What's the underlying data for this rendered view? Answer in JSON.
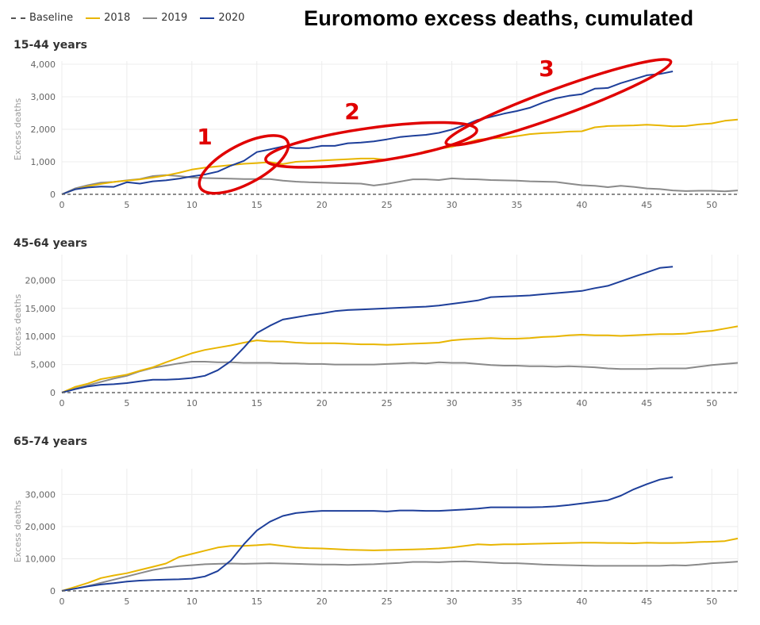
{
  "title": "Euromomo excess deaths, cumulated",
  "legend": [
    {
      "label": "Baseline",
      "color": "#555555",
      "dashed": true
    },
    {
      "label": "2018",
      "color": "#e8b500",
      "dashed": false
    },
    {
      "label": "2019",
      "color": "#8a8a8a",
      "dashed": false
    },
    {
      "label": "2020",
      "color": "#1e3f9a",
      "dashed": false
    }
  ],
  "annotation_color": "#e00000",
  "chart_data": [
    {
      "type": "line",
      "title": "15-44 years",
      "xlabel": "",
      "ylabel": "Excess deaths",
      "xlim": [
        0,
        52
      ],
      "ylim": [
        0,
        4000
      ],
      "xticks": [
        0,
        5,
        10,
        15,
        20,
        25,
        30,
        35,
        40,
        45,
        50
      ],
      "yticks": [
        0,
        1000,
        2000,
        3000,
        4000
      ],
      "ytick_labels": [
        "0",
        "1,000",
        "2,000",
        "3,000",
        "4,000"
      ],
      "series": [
        {
          "name": "Baseline",
          "x": [
            0,
            52
          ],
          "values": [
            0,
            0
          ]
        },
        {
          "name": "2018",
          "x": [
            0,
            1,
            2,
            3,
            4,
            5,
            6,
            7,
            8,
            9,
            10,
            11,
            12,
            13,
            14,
            15,
            16,
            17,
            18,
            19,
            20,
            21,
            22,
            23,
            24,
            25,
            26,
            27,
            28,
            29,
            30,
            31,
            32,
            33,
            34,
            35,
            36,
            37,
            38,
            39,
            40,
            41,
            42,
            43,
            44,
            45,
            46,
            47,
            48,
            49,
            50,
            51,
            52
          ],
          "values": [
            0,
            150,
            250,
            320,
            380,
            420,
            460,
            520,
            580,
            660,
            760,
            820,
            860,
            900,
            940,
            960,
            990,
            930,
            1000,
            1020,
            1040,
            1060,
            1080,
            1100,
            1100,
            1060,
            1150,
            1200,
            1330,
            1400,
            1460,
            1570,
            1680,
            1720,
            1740,
            1790,
            1850,
            1880,
            1900,
            1930,
            1940,
            2060,
            2100,
            2110,
            2120,
            2140,
            2120,
            2090,
            2100,
            2150,
            2180,
            2260,
            2300
          ]
        },
        {
          "name": "2019",
          "x": [
            0,
            1,
            2,
            3,
            4,
            5,
            6,
            7,
            8,
            9,
            10,
            11,
            12,
            13,
            14,
            15,
            16,
            17,
            18,
            19,
            20,
            21,
            22,
            23,
            24,
            25,
            26,
            27,
            28,
            29,
            30,
            31,
            32,
            33,
            34,
            35,
            36,
            37,
            38,
            39,
            40,
            41,
            42,
            43,
            44,
            45,
            46,
            47,
            48,
            49,
            50,
            51,
            52
          ],
          "values": [
            0,
            180,
            280,
            360,
            380,
            430,
            470,
            560,
            590,
            560,
            520,
            500,
            490,
            480,
            470,
            470,
            470,
            420,
            390,
            370,
            360,
            350,
            340,
            330,
            270,
            320,
            390,
            460,
            460,
            440,
            490,
            470,
            460,
            440,
            430,
            420,
            400,
            390,
            380,
            330,
            280,
            260,
            220,
            260,
            230,
            180,
            160,
            120,
            100,
            110,
            110,
            90,
            120
          ]
        },
        {
          "name": "2020",
          "x": [
            0,
            1,
            2,
            3,
            4,
            5,
            6,
            7,
            8,
            9,
            10,
            11,
            12,
            13,
            14,
            15,
            16,
            17,
            18,
            19,
            20,
            21,
            22,
            23,
            24,
            25,
            26,
            27,
            28,
            29,
            30,
            31,
            32,
            33,
            34,
            35,
            36,
            37,
            38,
            39,
            40,
            41,
            42,
            43,
            44,
            45,
            46,
            47
          ],
          "values": [
            0,
            150,
            210,
            240,
            230,
            370,
            330,
            400,
            430,
            480,
            550,
            610,
            700,
            880,
            1030,
            1300,
            1380,
            1470,
            1420,
            1420,
            1490,
            1490,
            1570,
            1590,
            1630,
            1690,
            1760,
            1800,
            1830,
            1890,
            1990,
            2130,
            2290,
            2380,
            2480,
            2560,
            2660,
            2820,
            2950,
            3030,
            3080,
            3250,
            3270,
            3420,
            3540,
            3660,
            3700,
            3780
          ]
        }
      ],
      "annotations": [
        {
          "label": "1",
          "cx": 14,
          "cy": 920,
          "rx": 3.8,
          "ry": 600,
          "rotate": -28
        },
        {
          "label": "2",
          "cx": 23.8,
          "cy": 1520,
          "rx": 8.2,
          "ry": 520,
          "rotate": -8
        },
        {
          "label": "3",
          "cx": 38.2,
          "cy": 2830,
          "rx": 9.2,
          "ry": 420,
          "rotate": -20
        }
      ]
    },
    {
      "type": "line",
      "title": "45-64 years",
      "xlabel": "",
      "ylabel": "Excess deaths",
      "xlim": [
        0,
        52
      ],
      "ylim": [
        0,
        24000
      ],
      "xticks": [
        0,
        5,
        10,
        15,
        20,
        25,
        30,
        35,
        40,
        45,
        50
      ],
      "yticks": [
        0,
        5000,
        10000,
        15000,
        20000
      ],
      "ytick_labels": [
        "0",
        "5,000",
        "10,000",
        "15,000",
        "20,000"
      ],
      "series": [
        {
          "name": "Baseline",
          "x": [
            0,
            52
          ],
          "values": [
            0,
            0
          ]
        },
        {
          "name": "2018",
          "x": [
            0,
            1,
            2,
            3,
            4,
            5,
            6,
            7,
            8,
            9,
            10,
            11,
            12,
            13,
            14,
            15,
            16,
            17,
            18,
            19,
            20,
            21,
            22,
            23,
            24,
            25,
            26,
            27,
            28,
            29,
            30,
            31,
            32,
            33,
            34,
            35,
            36,
            37,
            38,
            39,
            40,
            41,
            42,
            43,
            44,
            45,
            46,
            47,
            48,
            49,
            50,
            51,
            52
          ],
          "values": [
            0,
            1000,
            1600,
            2400,
            2800,
            3200,
            3900,
            4500,
            5400,
            6200,
            7000,
            7600,
            8000,
            8400,
            8900,
            9300,
            9100,
            9100,
            8900,
            8800,
            8800,
            8800,
            8700,
            8600,
            8600,
            8500,
            8600,
            8700,
            8800,
            8900,
            9300,
            9500,
            9600,
            9700,
            9600,
            9600,
            9700,
            9900,
            10000,
            10200,
            10300,
            10200,
            10200,
            10100,
            10200,
            10300,
            10400,
            10400,
            10500,
            10800,
            11000,
            11400,
            11800
          ]
        },
        {
          "name": "2019",
          "x": [
            0,
            1,
            2,
            3,
            4,
            5,
            6,
            7,
            8,
            9,
            10,
            11,
            12,
            13,
            14,
            15,
            16,
            17,
            18,
            19,
            20,
            21,
            22,
            23,
            24,
            25,
            26,
            27,
            28,
            29,
            30,
            31,
            32,
            33,
            34,
            35,
            36,
            37,
            38,
            39,
            40,
            41,
            42,
            43,
            44,
            45,
            46,
            47,
            48,
            49,
            50,
            51,
            52
          ],
          "values": [
            0,
            700,
            1300,
            1900,
            2500,
            3000,
            3800,
            4400,
            4800,
            5200,
            5500,
            5500,
            5400,
            5400,
            5300,
            5300,
            5300,
            5200,
            5200,
            5100,
            5100,
            5000,
            5000,
            5000,
            5000,
            5100,
            5200,
            5300,
            5200,
            5400,
            5300,
            5300,
            5100,
            4900,
            4800,
            4800,
            4700,
            4700,
            4600,
            4700,
            4600,
            4500,
            4300,
            4200,
            4200,
            4200,
            4300,
            4300,
            4300,
            4600,
            4900,
            5100,
            5300
          ]
        },
        {
          "name": "2020",
          "x": [
            0,
            1,
            2,
            3,
            4,
            5,
            6,
            7,
            8,
            9,
            10,
            11,
            12,
            13,
            14,
            15,
            16,
            17,
            18,
            19,
            20,
            21,
            22,
            23,
            24,
            25,
            26,
            27,
            28,
            29,
            30,
            31,
            32,
            33,
            34,
            35,
            36,
            37,
            38,
            39,
            40,
            41,
            42,
            43,
            44,
            45,
            46,
            47
          ],
          "values": [
            0,
            600,
            1100,
            1400,
            1500,
            1700,
            2000,
            2300,
            2300,
            2400,
            2600,
            3000,
            4000,
            5600,
            8000,
            10600,
            11900,
            13000,
            13400,
            13800,
            14100,
            14500,
            14700,
            14800,
            14900,
            15000,
            15100,
            15200,
            15300,
            15500,
            15800,
            16100,
            16400,
            17000,
            17100,
            17200,
            17300,
            17500,
            17700,
            17900,
            18100,
            18600,
            19000,
            19800,
            20600,
            21400,
            22200,
            22400
          ]
        }
      ],
      "annotations": []
    },
    {
      "type": "line",
      "title": "65-74 years",
      "xlabel": "",
      "ylabel": "Excess deaths",
      "xlim": [
        0,
        52
      ],
      "ylim": [
        0,
        37000
      ],
      "xticks": [
        0,
        5,
        10,
        15,
        20,
        25,
        30,
        35,
        40,
        45,
        50
      ],
      "yticks": [
        0,
        10000,
        20000,
        30000
      ],
      "ytick_labels": [
        "0",
        "10,000",
        "20,000",
        "30,000"
      ],
      "series": [
        {
          "name": "Baseline",
          "x": [
            0,
            52
          ],
          "values": [
            0,
            0
          ]
        },
        {
          "name": "2018",
          "x": [
            0,
            1,
            2,
            3,
            4,
            5,
            6,
            7,
            8,
            9,
            10,
            11,
            12,
            13,
            14,
            15,
            16,
            17,
            18,
            19,
            20,
            21,
            22,
            23,
            24,
            25,
            26,
            27,
            28,
            29,
            30,
            31,
            32,
            33,
            34,
            35,
            36,
            37,
            38,
            39,
            40,
            41,
            42,
            43,
            44,
            45,
            46,
            47,
            48,
            49,
            50,
            51,
            52
          ],
          "values": [
            0,
            1200,
            2500,
            4000,
            4800,
            5500,
            6500,
            7500,
            8500,
            10500,
            11500,
            12500,
            13500,
            14000,
            14000,
            14200,
            14500,
            14000,
            13500,
            13300,
            13200,
            13000,
            12800,
            12700,
            12600,
            12700,
            12800,
            12900,
            13000,
            13200,
            13500,
            14000,
            14500,
            14300,
            14500,
            14500,
            14600,
            14700,
            14800,
            14900,
            15000,
            15000,
            14900,
            14900,
            14800,
            15000,
            14900,
            14900,
            15000,
            15200,
            15300,
            15500,
            16300
          ]
        },
        {
          "name": "2019",
          "x": [
            0,
            1,
            2,
            3,
            4,
            5,
            6,
            7,
            8,
            9,
            10,
            11,
            12,
            13,
            14,
            15,
            16,
            17,
            18,
            19,
            20,
            21,
            22,
            23,
            24,
            25,
            26,
            27,
            28,
            29,
            30,
            31,
            32,
            33,
            34,
            35,
            36,
            37,
            38,
            39,
            40,
            41,
            42,
            43,
            44,
            45,
            46,
            47,
            48,
            49,
            50,
            51,
            52
          ],
          "values": [
            0,
            700,
            1500,
            2500,
            3500,
            4500,
            5500,
            6500,
            7200,
            7700,
            8000,
            8300,
            8400,
            8500,
            8400,
            8500,
            8600,
            8500,
            8400,
            8300,
            8200,
            8200,
            8100,
            8200,
            8300,
            8500,
            8700,
            9000,
            9000,
            8900,
            9100,
            9200,
            9000,
            8800,
            8600,
            8600,
            8400,
            8200,
            8100,
            8000,
            7900,
            7800,
            7800,
            7800,
            7800,
            7800,
            7800,
            8000,
            7900,
            8200,
            8600,
            8800,
            9100
          ]
        },
        {
          "name": "2020",
          "x": [
            0,
            1,
            2,
            3,
            4,
            5,
            6,
            7,
            8,
            9,
            10,
            11,
            12,
            13,
            14,
            15,
            16,
            17,
            18,
            19,
            20,
            21,
            22,
            23,
            24,
            25,
            26,
            27,
            28,
            29,
            30,
            31,
            32,
            33,
            34,
            35,
            36,
            37,
            38,
            39,
            40,
            41,
            42,
            43,
            44,
            45,
            46,
            47
          ],
          "values": [
            0,
            700,
            1400,
            2000,
            2400,
            2900,
            3200,
            3400,
            3500,
            3600,
            3800,
            4500,
            6200,
            9500,
            14500,
            18800,
            21500,
            23300,
            24200,
            24600,
            24900,
            24900,
            24900,
            24900,
            24900,
            24700,
            25000,
            25000,
            24900,
            24900,
            25100,
            25300,
            25600,
            26000,
            26000,
            26000,
            26000,
            26100,
            26300,
            26700,
            27200,
            27700,
            28200,
            29600,
            31600,
            33200,
            34600,
            35400
          ]
        }
      ],
      "annotations": []
    }
  ]
}
